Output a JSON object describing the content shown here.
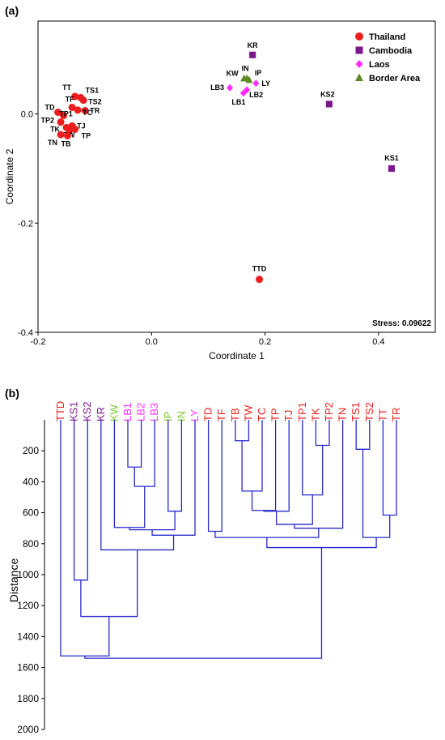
{
  "panel_a_label": "(a)",
  "panel_b_label": "(b)",
  "chart_data": [
    {
      "type": "scatter",
      "xlabel": "Coordinate 1",
      "ylabel": "Coordinate 2",
      "xlim": [
        -0.2,
        0.5
      ],
      "ylim": [
        -0.4,
        0.17
      ],
      "xticks": [
        -0.2,
        0.0,
        0.2,
        0.4
      ],
      "xtick_labels": [
        "-0.2",
        "0.0",
        "0.2",
        "0.4"
      ],
      "yticks": [
        -0.4,
        -0.2,
        0.0
      ],
      "ytick_labels": [
        "-0.4",
        "-0.2",
        "0.0"
      ],
      "annotation": "Stress: 0.09622",
      "legend_position": "top-right",
      "series": [
        {
          "name": "Thailand",
          "marker": "circle",
          "color": "#ee1c1c",
          "points": [
            {
              "label": "TT",
              "x": -0.135,
              "y": 0.032
            },
            {
              "label": "TS1",
              "x": -0.125,
              "y": 0.03
            },
            {
              "label": "TS2",
              "x": -0.12,
              "y": 0.025
            },
            {
              "label": "TD",
              "x": -0.165,
              "y": 0.003
            },
            {
              "label": "TF",
              "x": -0.14,
              "y": 0.012
            },
            {
              "label": "TP1",
              "x": -0.155,
              "y": -0.003
            },
            {
              "label": "TR",
              "x": -0.117,
              "y": 0.006
            },
            {
              "label": "TC",
              "x": -0.13,
              "y": 0.007
            },
            {
              "label": "TP2",
              "x": -0.16,
              "y": -0.015
            },
            {
              "label": "TJ",
              "x": -0.14,
              "y": -0.022
            },
            {
              "label": "TK",
              "x": -0.15,
              "y": -0.025
            },
            {
              "label": "TW",
              "x": -0.145,
              "y": -0.03
            },
            {
              "label": "TP",
              "x": -0.135,
              "y": -0.028
            },
            {
              "label": "TN",
              "x": -0.16,
              "y": -0.038
            },
            {
              "label": "TB",
              "x": -0.148,
              "y": -0.04
            },
            {
              "label": "TTD",
              "x": 0.19,
              "y": -0.303
            }
          ]
        },
        {
          "name": "Cambodia",
          "marker": "square",
          "color": "#7b168c",
          "points": [
            {
              "label": "KR",
              "x": 0.178,
              "y": 0.108
            },
            {
              "label": "KS2",
              "x": 0.313,
              "y": 0.018
            },
            {
              "label": "KS1",
              "x": 0.423,
              "y": -0.1
            }
          ]
        },
        {
          "name": "Laos",
          "marker": "diamond",
          "color": "#ff2bff",
          "points": [
            {
              "label": "LB3",
              "x": 0.138,
              "y": 0.048
            },
            {
              "label": "LY",
              "x": 0.184,
              "y": 0.056
            },
            {
              "label": "LB2",
              "x": 0.168,
              "y": 0.044
            },
            {
              "label": "LB1",
              "x": 0.162,
              "y": 0.038
            }
          ]
        },
        {
          "name": "Border Area",
          "marker": "triangle",
          "color": "#5d8a22",
          "points": [
            {
              "label": "KW",
              "x": 0.163,
              "y": 0.065
            },
            {
              "label": "IN",
              "x": 0.168,
              "y": 0.065
            },
            {
              "label": "IP",
              "x": 0.172,
              "y": 0.062
            }
          ]
        }
      ]
    },
    {
      "type": "dendrogram",
      "ylabel": "Distance",
      "ylim": [
        0,
        2000
      ],
      "yticks": [
        200,
        400,
        600,
        800,
        1000,
        1200,
        1400,
        1600,
        1800,
        2000
      ],
      "ytick_labels": [
        "200",
        "400",
        "600",
        "800",
        "1000",
        "1200",
        "1400",
        "1600",
        "1800",
        "2000"
      ],
      "leaves": [
        {
          "label": "TTD",
          "group": "Thailand",
          "color": "#ee1c1c"
        },
        {
          "label": "KS1",
          "group": "Cambodia",
          "color": "#7b168c"
        },
        {
          "label": "KS2",
          "group": "Cambodia",
          "color": "#7b168c"
        },
        {
          "label": "KR",
          "group": "Cambodia",
          "color": "#7b168c"
        },
        {
          "label": "KW",
          "group": "Border Area",
          "color": "#7cc62a"
        },
        {
          "label": "LB1",
          "group": "Laos",
          "color": "#ff2bff"
        },
        {
          "label": "LB2",
          "group": "Laos",
          "color": "#ff2bff"
        },
        {
          "label": "LB3",
          "group": "Laos",
          "color": "#ff2bff"
        },
        {
          "label": "IP",
          "group": "Border Area",
          "color": "#7cc62a"
        },
        {
          "label": "IN",
          "group": "Border Area",
          "color": "#7cc62a"
        },
        {
          "label": "LY",
          "group": "Laos",
          "color": "#ff2bff"
        },
        {
          "label": "TD",
          "group": "Thailand",
          "color": "#ee1c1c"
        },
        {
          "label": "TF",
          "group": "Thailand",
          "color": "#ee1c1c"
        },
        {
          "label": "TB",
          "group": "Thailand",
          "color": "#ee1c1c"
        },
        {
          "label": "TW",
          "group": "Thailand",
          "color": "#ee1c1c"
        },
        {
          "label": "TC",
          "group": "Thailand",
          "color": "#ee1c1c"
        },
        {
          "label": "TP",
          "group": "Thailand",
          "color": "#ee1c1c"
        },
        {
          "label": "TJ",
          "group": "Thailand",
          "color": "#ee1c1c"
        },
        {
          "label": "TP1",
          "group": "Thailand",
          "color": "#ee1c1c"
        },
        {
          "label": "TK",
          "group": "Thailand",
          "color": "#ee1c1c"
        },
        {
          "label": "TP2",
          "group": "Thailand",
          "color": "#ee1c1c"
        },
        {
          "label": "TN",
          "group": "Thailand",
          "color": "#ee1c1c"
        },
        {
          "label": "TS1",
          "group": "Thailand",
          "color": "#ee1c1c"
        },
        {
          "label": "TS2",
          "group": "Thailand",
          "color": "#ee1c1c"
        },
        {
          "label": "TT",
          "group": "Thailand",
          "color": "#ee1c1c"
        },
        {
          "label": "TR",
          "group": "Thailand",
          "color": "#ee1c1c"
        }
      ],
      "merges": [
        {
          "a": "LB1",
          "b": "LB2",
          "height": 305
        },
        {
          "a": "LB1+LB2",
          "b": "LB3",
          "height": 430
        },
        {
          "a": "KW",
          "b": "LB1+LB2+LB3",
          "height": 695
        },
        {
          "a": "IP",
          "b": "IN",
          "height": 590
        },
        {
          "a": "KW..LB3",
          "b": "IP+IN",
          "height": 710
        },
        {
          "a": "KW..IN",
          "b": "LY",
          "height": 745
        },
        {
          "a": "KR",
          "b": "KW..LY",
          "height": 840
        },
        {
          "a": "KS1",
          "b": "KS2",
          "height": 1035
        },
        {
          "a": "KS1+KS2",
          "b": "KR..LY",
          "height": 1270
        },
        {
          "a": "TTD",
          "b": "KS1..LY",
          "height": 1525
        },
        {
          "a": "TB",
          "b": "TW",
          "height": 135
        },
        {
          "a": "TB+TW",
          "b": "TC",
          "height": 460
        },
        {
          "a": "TB..TC",
          "b": "TP",
          "height": 585
        },
        {
          "a": "TB..TP",
          "b": "TJ",
          "height": 590
        },
        {
          "a": "TK",
          "b": "TP2",
          "height": 165
        },
        {
          "a": "TP1",
          "b": "TK+TP2",
          "height": 485
        },
        {
          "a": "TB..TJ",
          "b": "TP1..TP2",
          "height": 675
        },
        {
          "a": "TB..TP2",
          "b": "TN",
          "height": 700
        },
        {
          "a": "TD",
          "b": "TF",
          "height": 720
        },
        {
          "a": "TD+TF",
          "b": "TB..TN",
          "height": 760
        },
        {
          "a": "TS1",
          "b": "TS2",
          "height": 190
        },
        {
          "a": "TT",
          "b": "TR",
          "height": 615
        },
        {
          "a": "TS1+TS2",
          "b": "TT+TR",
          "height": 760
        },
        {
          "a": "TD..TN",
          "b": "TS1..TR",
          "height": 825
        },
        {
          "a": "TTD..LY",
          "b": "TD..TR",
          "height": 1540
        }
      ]
    }
  ]
}
